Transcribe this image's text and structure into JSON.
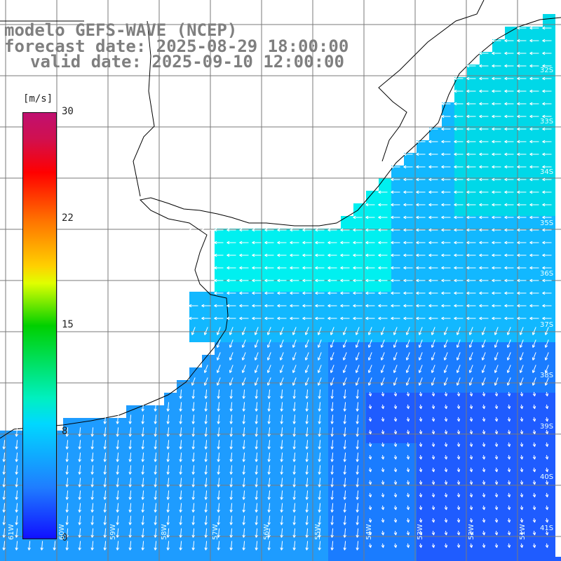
{
  "title": {
    "line1": "modelo GEFS-WAVE (NCEP)",
    "line2": "forecast date: 2025-08-29 18:00:00",
    "line3": "valid date: 2025-09-10 12:00:00"
  },
  "colorbar": {
    "units": "[m/s]",
    "labels": [
      "30",
      "22",
      "15",
      "8",
      "0"
    ],
    "values": [
      30,
      22,
      15,
      8,
      0
    ]
  },
  "map": {
    "latitude_labels": [
      "32S",
      "33S",
      "34S",
      "35S",
      "36S",
      "37S",
      "38S",
      "39S",
      "40S",
      "41S"
    ],
    "longitude_labels": [
      "61W",
      "60W",
      "59W",
      "58W",
      "57W",
      "56W",
      "55W",
      "54W",
      "53W",
      "52W",
      "51W"
    ],
    "colors": {
      "land": "#ffffff",
      "grid": "#7a7a7a",
      "coast": "#000000",
      "arrows": "#ffffff",
      "weak_wind": "#1f5cff",
      "moderate_wind": "#1e9cff",
      "strong_wind": "#00f0f0"
    }
  }
}
